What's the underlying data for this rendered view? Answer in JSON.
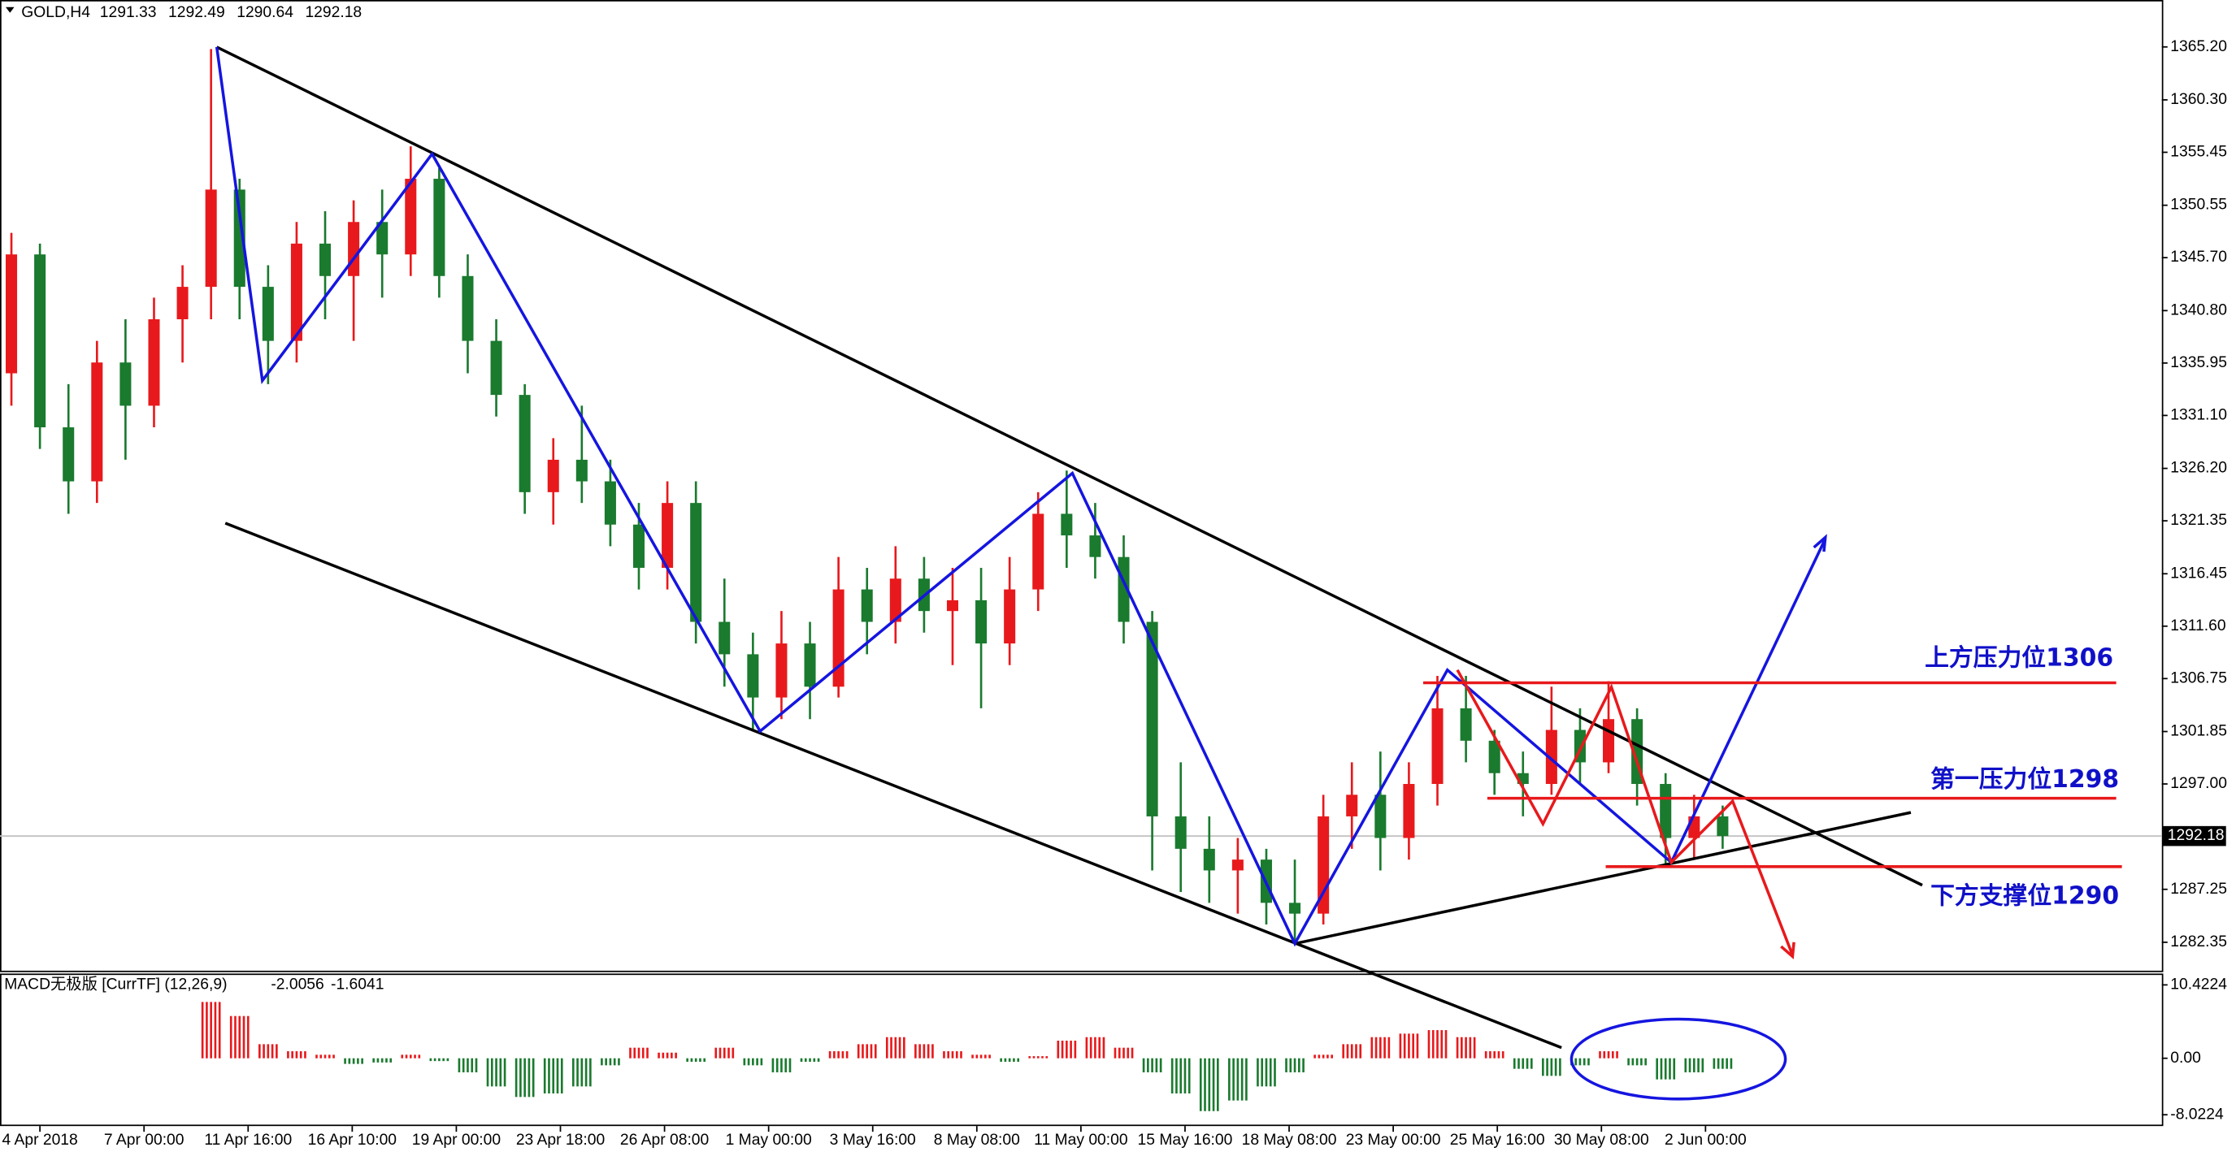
{
  "chart_data": {
    "type": "candlestick",
    "symbol": "GOLD,H4",
    "header_ohlc": [
      1291.33,
      1292.49,
      1290.64,
      1292.18
    ],
    "up_color": "#e8191c",
    "down_color": "#1a7a2e",
    "ylim": [
      1279.72,
      1369.41
    ],
    "yticks": [
      {
        "value": 1365.2,
        "label": "1365.20"
      },
      {
        "value": 1360.3,
        "label": "1360.30"
      },
      1355.45,
      1350.55,
      {
        "value": 1345.7,
        "label": "1345.70"
      },
      {
        "value": 1340.8,
        "label": "1340.80"
      },
      1335.95,
      {
        "value": 1331.1,
        "label": "1331.10"
      },
      {
        "value": 1326.2,
        "label": "1326.20"
      },
      1321.35,
      1316.45,
      {
        "value": 1311.6,
        "label": "1311.60"
      },
      1306.75,
      1301.85,
      {
        "value": 1297.0,
        "label": "1297.00"
      },
      1287.25,
      1282.35
    ],
    "last_price": 1292.18,
    "x_labels": [
      "4 Apr 2018",
      "7 Apr 00:00",
      "11 Apr 16:00",
      "16 Apr 10:00",
      "19 Apr 00:00",
      "23 Apr 18:00",
      "26 Apr 08:00",
      "1 May 00:00",
      "3 May 16:00",
      "8 May 08:00",
      "11 May 00:00",
      "15 May 16:00",
      "18 May 08:00",
      "23 May 00:00",
      "25 May 16:00",
      "30 May 08:00",
      "2 Jun 00:00"
    ],
    "ohlc": [
      [
        1335,
        1348,
        1332,
        1346
      ],
      [
        1346,
        1347,
        1328,
        1330
      ],
      [
        1330,
        1334,
        1322,
        1325
      ],
      [
        1325,
        1338,
        1323,
        1336
      ],
      [
        1336,
        1340,
        1327,
        1332
      ],
      [
        1332,
        1342,
        1330,
        1340
      ],
      [
        1340,
        1345,
        1336,
        1343
      ],
      [
        1343,
        1365,
        1340,
        1352
      ],
      [
        1352,
        1353,
        1340,
        1343
      ],
      [
        1343,
        1345,
        1334,
        1338
      ],
      [
        1338,
        1349,
        1336,
        1347
      ],
      [
        1347,
        1350,
        1340,
        1344
      ],
      [
        1344,
        1351,
        1338,
        1349
      ],
      [
        1349,
        1352,
        1342,
        1346
      ],
      [
        1346,
        1356,
        1344,
        1353
      ],
      [
        1353,
        1354,
        1342,
        1344
      ],
      [
        1344,
        1346,
        1335,
        1338
      ],
      [
        1338,
        1340,
        1331,
        1333
      ],
      [
        1333,
        1334,
        1322,
        1324
      ],
      [
        1324,
        1329,
        1321,
        1327
      ],
      [
        1327,
        1332,
        1323,
        1325
      ],
      [
        1325,
        1327,
        1319,
        1321
      ],
      [
        1321,
        1323,
        1315,
        1317
      ],
      [
        1317,
        1325,
        1315,
        1323
      ],
      [
        1323,
        1325,
        1310,
        1312
      ],
      [
        1312,
        1316,
        1306,
        1309
      ],
      [
        1309,
        1311,
        1302,
        1305
      ],
      [
        1305,
        1313,
        1303,
        1310
      ],
      [
        1310,
        1312,
        1303,
        1306
      ],
      [
        1306,
        1318,
        1305,
        1315
      ],
      [
        1315,
        1317,
        1309,
        1312
      ],
      [
        1312,
        1319,
        1310,
        1316
      ],
      [
        1316,
        1318,
        1311,
        1313
      ],
      [
        1313,
        1317,
        1308,
        1314
      ],
      [
        1314,
        1317,
        1304,
        1310
      ],
      [
        1310,
        1318,
        1308,
        1315
      ],
      [
        1315,
        1324,
        1313,
        1322
      ],
      [
        1322,
        1326,
        1317,
        1320
      ],
      [
        1320,
        1323,
        1316,
        1318
      ],
      [
        1318,
        1320,
        1310,
        1312
      ],
      [
        1312,
        1313,
        1289,
        1294
      ],
      [
        1294,
        1299,
        1287,
        1291
      ],
      [
        1291,
        1294,
        1286,
        1289
      ],
      [
        1289,
        1292,
        1285,
        1290
      ],
      [
        1290,
        1291,
        1284,
        1286
      ],
      [
        1286,
        1290,
        1282.4,
        1285
      ],
      [
        1285,
        1296,
        1284,
        1294
      ],
      [
        1294,
        1299,
        1291,
        1296
      ],
      [
        1296,
        1300,
        1289,
        1292
      ],
      [
        1292,
        1299,
        1290,
        1297
      ],
      [
        1297,
        1307,
        1295,
        1304
      ],
      [
        1304,
        1307,
        1299,
        1301
      ],
      [
        1301,
        1302,
        1296,
        1298
      ],
      [
        1298,
        1300,
        1294,
        1297
      ],
      [
        1297,
        1306,
        1296,
        1302
      ],
      [
        1302,
        1304,
        1297,
        1299
      ],
      [
        1299,
        1306.5,
        1298,
        1303
      ],
      [
        1303,
        1304,
        1295,
        1297
      ],
      [
        1297,
        1298,
        1289.6,
        1292
      ],
      [
        1292,
        1296,
        1290,
        1294
      ],
      [
        1294,
        1295,
        1291,
        1292.18
      ]
    ],
    "macd_label": "MACD无极版 [CurrTF] (12,26,9)",
    "macd_values": [
      -2.0056,
      -1.6041
    ],
    "macd_ylim": [
      -9.63,
      11.83
    ],
    "macd_yticks": [
      10.4224,
      {
        "value": 0,
        "label": "0.00"
      },
      -8.0224
    ],
    "macd_hist": [
      null,
      null,
      null,
      null,
      null,
      null,
      null,
      8,
      6,
      2,
      1,
      0.5,
      -0.8,
      -0.6,
      0.5,
      -0.4,
      -2,
      -4,
      -5.5,
      -5,
      -4,
      -1,
      1.5,
      0.8,
      -0.5,
      1.5,
      -1,
      -2,
      -0.5,
      1,
      2,
      3,
      2,
      1,
      0.5,
      -0.5,
      0.3,
      2.5,
      3,
      1.5,
      -2,
      -5,
      -7.5,
      -6,
      -4,
      -2,
      0.5,
      2,
      3,
      3.5,
      4,
      3,
      1,
      -1.5,
      -2.5,
      -1,
      1,
      -1,
      -3,
      -2,
      -1.5
    ],
    "annotations": [
      {
        "label": "上方压力位",
        "level": 1306
      },
      {
        "label": "第一压力位",
        "level": 1298
      },
      {
        "label": "下方支撑位",
        "level": 1290
      }
    ]
  }
}
